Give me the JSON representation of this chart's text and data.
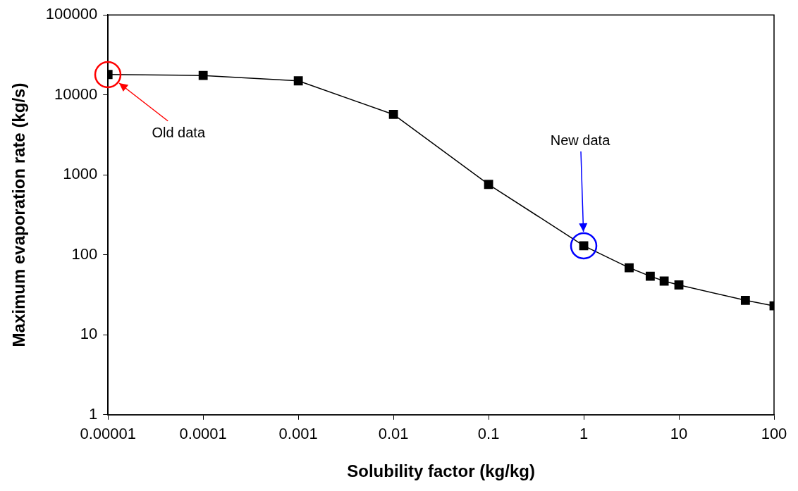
{
  "chart_data": {
    "type": "line",
    "xlabel": "Solubility factor (kg/kg)",
    "ylabel": "Maximum evaporation rate (kg/s)",
    "x": [
      1e-05,
      0.0001,
      0.001,
      0.01,
      0.1,
      1,
      3,
      5,
      7,
      10,
      50,
      100
    ],
    "series": [
      {
        "color": "#000000",
        "values": [
          18000,
          17500,
          15000,
          5700,
          760,
          130,
          69,
          54,
          47,
          42,
          27,
          23
        ]
      }
    ],
    "log": "xy",
    "xlim": [
      1e-05,
      100
    ],
    "xticks": [
      {
        "value": 1e-05,
        "label": "0.00001"
      },
      0.0001,
      0.001,
      0.01,
      0.1,
      1,
      10,
      100
    ],
    "ylim": [
      1,
      100000
    ],
    "yticks": [
      1,
      10,
      100,
      1000,
      10000,
      100000
    ],
    "marker": "square",
    "line_style": "solid",
    "grid": false,
    "legend": false,
    "annotations": [
      "Old data",
      "New data"
    ]
  }
}
